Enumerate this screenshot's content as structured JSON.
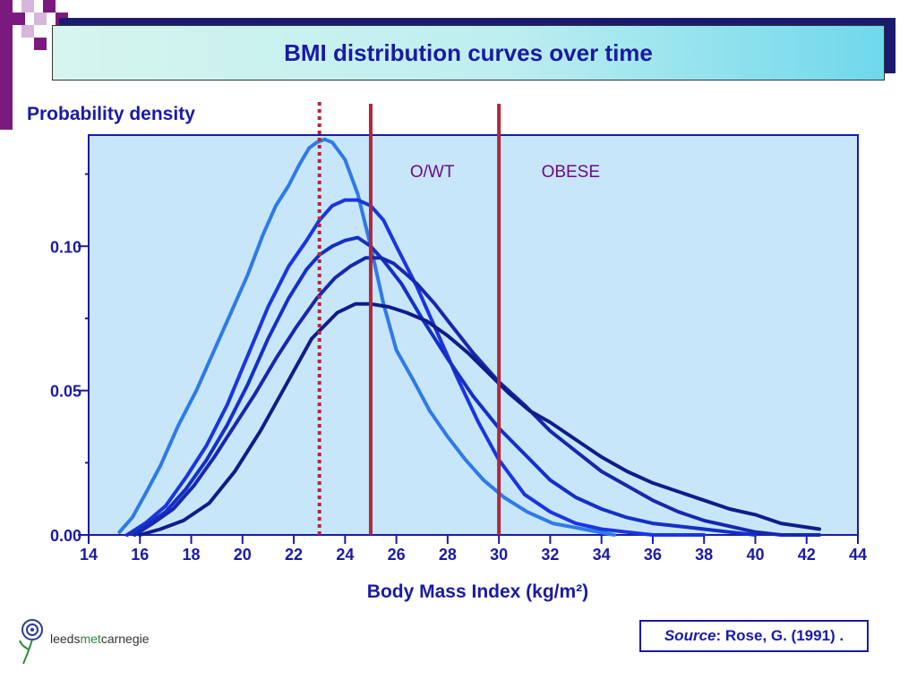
{
  "header": {
    "title": "BMI distribution curves over time"
  },
  "logo": {
    "text_leeds": "leeds",
    "text_met": "met",
    "text_carnegie": "carnegie"
  },
  "source": {
    "label": "Source",
    "text": ": Rose, G. (1991) ."
  },
  "colors": {
    "plot_bg": "#c8e6fa",
    "accent_red": "#b0283a",
    "title_text": "#1a1aa6",
    "category_label": "#6a0a8a",
    "series": [
      "#2f7ae8",
      "#1a35e0",
      "#1430c8",
      "#1628ad",
      "#101c8a"
    ]
  },
  "chart_data": {
    "type": "line",
    "title": "",
    "xlabel": "Body Mass Index (kg/m²)",
    "ylabel": "Probability density",
    "xlim": [
      14,
      44
    ],
    "ylim": [
      0,
      0.1385
    ],
    "x_ticks": [
      14,
      16,
      18,
      20,
      22,
      24,
      26,
      28,
      30,
      32,
      34,
      36,
      38,
      40,
      42,
      44
    ],
    "y_ticks": [
      {
        "value": 0.0,
        "label": "0.00"
      },
      {
        "value": 0.025,
        "label": ""
      },
      {
        "value": 0.05,
        "label": "0.05"
      },
      {
        "value": 0.075,
        "label": ""
      },
      {
        "value": 0.1,
        "label": "0.10"
      },
      {
        "value": 0.125,
        "label": ""
      }
    ],
    "grid": false,
    "legend": "none",
    "reference_lines": [
      {
        "x": 23,
        "style": "dotted"
      },
      {
        "x": 25,
        "style": "solid"
      },
      {
        "x": 30,
        "style": "solid"
      }
    ],
    "annotations": [
      {
        "text": "O/WT",
        "x": 27.4,
        "y": 0.124
      },
      {
        "text": "OBESE",
        "x": 32.8,
        "y": 0.124
      }
    ],
    "series": [
      {
        "x": [
          15.2,
          15.7,
          16.2,
          16.8,
          17.5,
          18.2,
          18.8,
          19.5,
          20.2,
          20.8,
          21.3,
          21.8,
          22.2,
          22.6,
          22.9,
          23.2,
          23.5,
          24.0,
          24.5,
          25.0,
          25.5,
          26.0,
          26.7,
          27.3,
          28.0,
          28.7,
          29.4,
          30.2,
          31.1,
          32.1,
          33.3,
          34.5
        ],
        "y": [
          0.001,
          0.006,
          0.014,
          0.024,
          0.038,
          0.05,
          0.062,
          0.076,
          0.09,
          0.104,
          0.114,
          0.121,
          0.128,
          0.134,
          0.136,
          0.137,
          0.136,
          0.13,
          0.118,
          0.1,
          0.08,
          0.064,
          0.053,
          0.043,
          0.034,
          0.026,
          0.019,
          0.013,
          0.008,
          0.004,
          0.002,
          0.0
        ]
      },
      {
        "x": [
          15.5,
          16.2,
          17.0,
          17.8,
          18.6,
          19.4,
          20.2,
          21.0,
          21.8,
          22.5,
          23.0,
          23.5,
          24.0,
          24.5,
          25.0,
          25.5,
          26.0,
          26.8,
          27.6,
          28.4,
          29.2,
          30.0,
          31.0,
          32.0,
          33.0,
          34.0,
          35.0,
          36.0,
          37.0,
          38.0
        ],
        "y": [
          0.0,
          0.004,
          0.01,
          0.02,
          0.031,
          0.045,
          0.062,
          0.079,
          0.093,
          0.102,
          0.109,
          0.114,
          0.116,
          0.116,
          0.114,
          0.109,
          0.1,
          0.086,
          0.07,
          0.054,
          0.039,
          0.026,
          0.014,
          0.008,
          0.004,
          0.002,
          0.001,
          0.0,
          0.0,
          0.0
        ]
      },
      {
        "x": [
          15.5,
          16.2,
          17.0,
          17.8,
          18.6,
          19.4,
          20.2,
          21.0,
          21.8,
          22.5,
          23.0,
          23.5,
          24.0,
          24.5,
          25.0,
          25.5,
          26.2,
          27.0,
          28.0,
          29.0,
          30.0,
          31.0,
          32.0,
          33.0,
          34.0,
          35.0,
          36.0,
          37.0,
          38.0,
          39.0,
          40.0
        ],
        "y": [
          0.0,
          0.003,
          0.008,
          0.016,
          0.026,
          0.038,
          0.052,
          0.068,
          0.082,
          0.092,
          0.097,
          0.1,
          0.102,
          0.103,
          0.1,
          0.095,
          0.087,
          0.075,
          0.061,
          0.048,
          0.037,
          0.028,
          0.019,
          0.013,
          0.009,
          0.006,
          0.004,
          0.003,
          0.002,
          0.001,
          0.0
        ]
      },
      {
        "x": [
          15.8,
          16.5,
          17.3,
          18.1,
          18.9,
          19.7,
          20.5,
          21.3,
          22.1,
          22.9,
          23.6,
          24.2,
          24.8,
          25.4,
          25.9,
          26.3,
          26.8,
          27.5,
          28.2,
          29.0,
          30.0,
          31.0,
          32.0,
          33.0,
          34.0,
          35.0,
          36.0,
          37.0,
          38.0,
          39.0,
          40.0,
          41.0,
          42.5
        ],
        "y": [
          0.0,
          0.004,
          0.009,
          0.017,
          0.027,
          0.038,
          0.049,
          0.061,
          0.072,
          0.082,
          0.089,
          0.093,
          0.096,
          0.096,
          0.094,
          0.091,
          0.087,
          0.08,
          0.072,
          0.063,
          0.053,
          0.045,
          0.036,
          0.029,
          0.022,
          0.017,
          0.012,
          0.008,
          0.005,
          0.003,
          0.001,
          0.0,
          0.0
        ]
      },
      {
        "x": [
          16.0,
          16.8,
          17.7,
          18.7,
          19.7,
          20.7,
          21.7,
          22.7,
          23.7,
          24.4,
          25.0,
          25.7,
          26.4,
          27.2,
          28.0,
          28.8,
          29.6,
          30.4,
          31.2,
          32.0,
          33.0,
          34.0,
          35.0,
          36.0,
          37.0,
          38.0,
          39.0,
          40.0,
          41.0,
          42.5
        ],
        "y": [
          0.0,
          0.002,
          0.005,
          0.011,
          0.022,
          0.036,
          0.052,
          0.068,
          0.077,
          0.08,
          0.08,
          0.079,
          0.077,
          0.074,
          0.069,
          0.063,
          0.056,
          0.049,
          0.043,
          0.039,
          0.033,
          0.027,
          0.022,
          0.018,
          0.015,
          0.012,
          0.009,
          0.007,
          0.004,
          0.002
        ]
      }
    ]
  }
}
